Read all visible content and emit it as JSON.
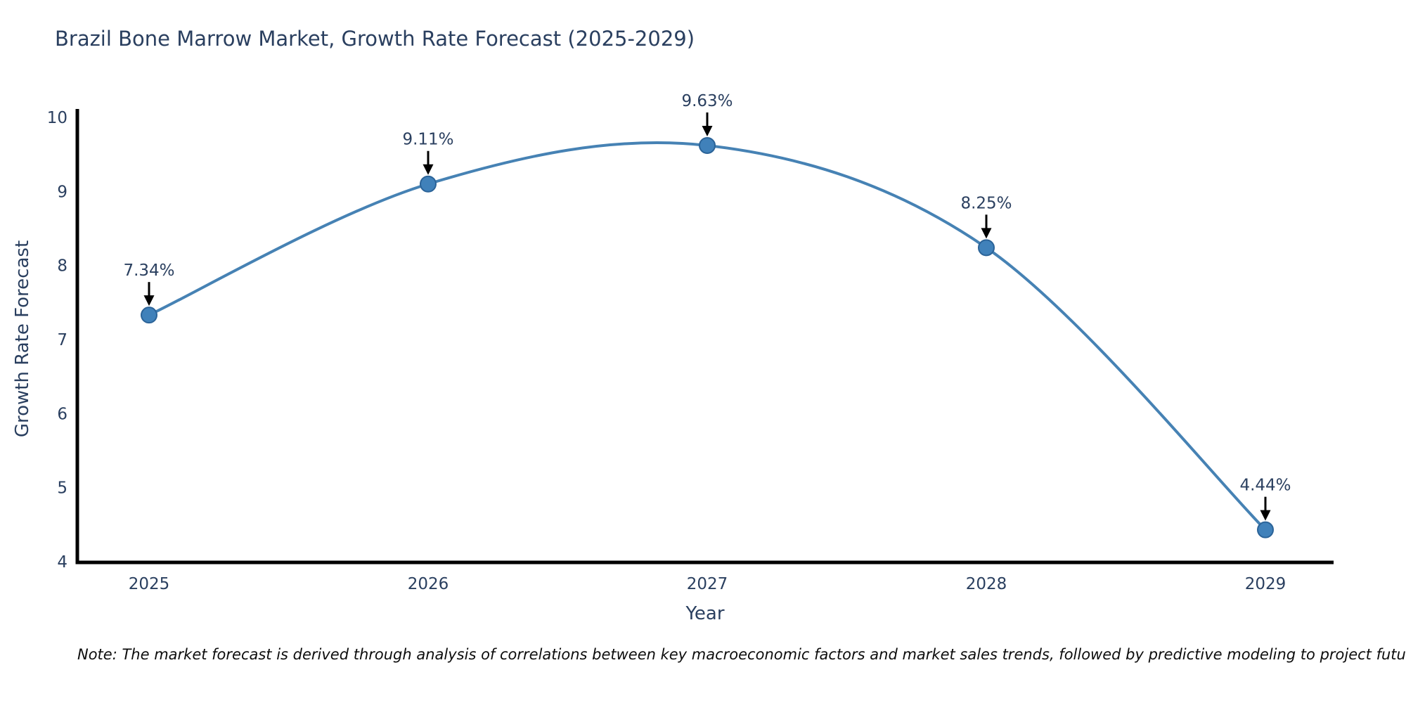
{
  "chart_data": {
    "type": "line",
    "title": "Brazil Bone Marrow Market, Growth Rate Forecast (2025-2029)",
    "xlabel": "Year",
    "ylabel": "Growth Rate Forecast",
    "categories": [
      "2025",
      "2026",
      "2027",
      "2028",
      "2029"
    ],
    "values": [
      7.34,
      9.11,
      9.63,
      8.25,
      4.44
    ],
    "point_labels": [
      "7.34%",
      "9.11%",
      "9.63%",
      "8.25%",
      "4.44%"
    ],
    "ylim": [
      4,
      10
    ],
    "yticks": [
      4,
      5,
      6,
      7,
      8,
      9,
      10
    ],
    "grid": false,
    "legend": "none",
    "line_shape": "spline",
    "colors": {
      "line": "#4682b4",
      "marker_fill": "#4081ba",
      "marker_edge": "#2b6398",
      "axis_line": "#000000",
      "tick_text": "#2a3f5f",
      "annotation_text": "#2a3f5f",
      "annotation_arrow": "#000000",
      "title_text": "#2a3f5f",
      "background": "#ffffff"
    }
  },
  "footnote": "Note: The market forecast is derived through analysis of correlations between key macroeconomic factors and market sales trends, followed by predictive modeling to project future sales"
}
